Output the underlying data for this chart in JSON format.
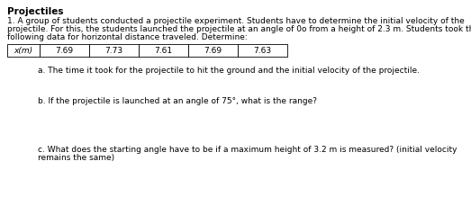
{
  "title": "Projectiles",
  "line1": "1. A group of students conducted a projectile experiment. Students have to determine the initial velocity of the",
  "line2": "projectile. For this, the students launched the projectile at an angle of 0o from a height of 2.3 m. Students took the",
  "line3": "following data for horizontal distance traveled. Determine:",
  "table_header": "x(m)",
  "table_values": [
    "7.69",
    "7.73",
    "7.61",
    "7.69",
    "7.63"
  ],
  "question_a": "a. The time it took for the projectile to hit the ground and the initial velocity of the projectile.",
  "question_b": "b. If the projectile is launched at an angle of 75°, what is the range?",
  "question_c1": "c. What does the starting angle have to be if a maximum height of 3.2 m is measured? (initial velocity",
  "question_c2": "remains the same)",
  "bg_color": "#ffffff",
  "text_color": "#000000",
  "font_size_title": 7.5,
  "font_size_body": 6.5,
  "font_size_table": 6.5
}
